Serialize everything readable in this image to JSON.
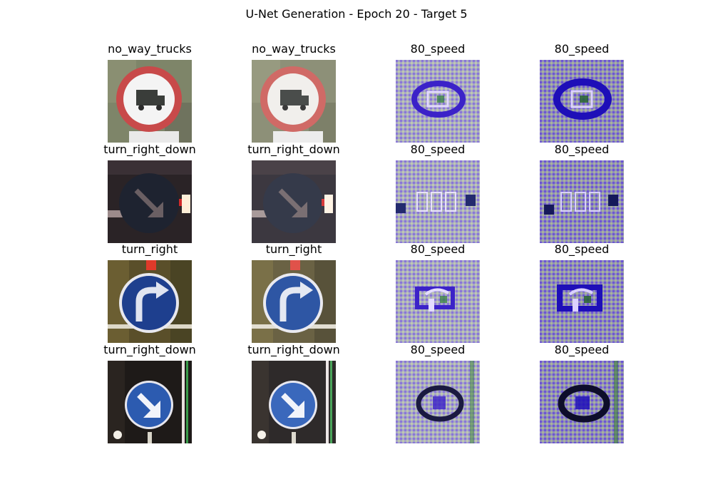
{
  "figure": {
    "title": "U-Net Generation - Epoch 20 - Target 5"
  },
  "grid": {
    "rows": [
      {
        "cells": [
          {
            "label": "no_way_trucks",
            "kind": "original",
            "sign": "no-way-trucks-sign"
          },
          {
            "label": "no_way_trucks",
            "kind": "reconstruction",
            "sign": "no-way-trucks-sign"
          },
          {
            "label": "80_speed",
            "kind": "generated",
            "sign": "noise-pattern"
          },
          {
            "label": "80_speed",
            "kind": "generated-dark",
            "sign": "noise-pattern"
          }
        ]
      },
      {
        "cells": [
          {
            "label": "turn_right_down",
            "kind": "original",
            "sign": "turn-right-down-dark-sign"
          },
          {
            "label": "turn_right_down",
            "kind": "reconstruction",
            "sign": "turn-right-down-dark-sign"
          },
          {
            "label": "80_speed",
            "kind": "generated",
            "sign": "noise-pattern"
          },
          {
            "label": "80_speed",
            "kind": "generated-dark",
            "sign": "noise-pattern"
          }
        ]
      },
      {
        "cells": [
          {
            "label": "turn_right",
            "kind": "original",
            "sign": "turn-right-sign"
          },
          {
            "label": "turn_right",
            "kind": "reconstruction",
            "sign": "turn-right-sign"
          },
          {
            "label": "80_speed",
            "kind": "generated",
            "sign": "noise-pattern"
          },
          {
            "label": "80_speed",
            "kind": "generated-dark",
            "sign": "noise-pattern"
          }
        ]
      },
      {
        "cells": [
          {
            "label": "turn_right_down",
            "kind": "original",
            "sign": "turn-right-down-blue-sign"
          },
          {
            "label": "turn_right_down",
            "kind": "reconstruction",
            "sign": "turn-right-down-blue-sign"
          },
          {
            "label": "80_speed",
            "kind": "generated",
            "sign": "noise-pattern"
          },
          {
            "label": "80_speed",
            "kind": "generated-dark",
            "sign": "noise-pattern"
          }
        ]
      }
    ]
  }
}
